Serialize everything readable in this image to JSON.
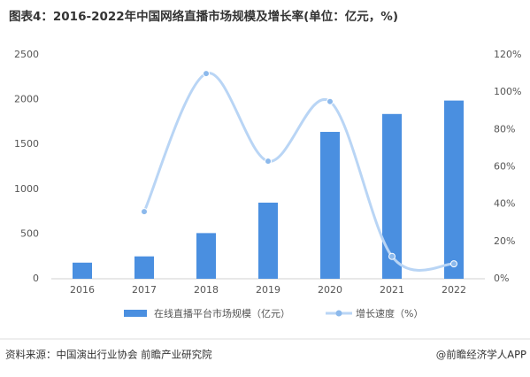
{
  "chart_data": {
    "type": "bar-line",
    "title": "图表4：2016-2022年中国网络直播市场规模及增长率(单位：亿元，%)",
    "categories": [
      "2016",
      "2017",
      "2018",
      "2019",
      "2020",
      "2021",
      "2022"
    ],
    "series": [
      {
        "name": "在线直播平台市场规模（亿元）",
        "type": "bar",
        "color": "#4a8fe0",
        "values": [
          180,
          250,
          510,
          850,
          1640,
          1840,
          1990
        ]
      },
      {
        "name": "增长速度（%）",
        "type": "line",
        "axis": "y2",
        "smooth": true,
        "color": "#b9d5f5",
        "values": [
          null,
          36,
          110,
          63,
          95,
          12,
          8
        ]
      }
    ],
    "ylim": [
      0,
      2500
    ],
    "yticks": [
      0,
      500,
      1000,
      1500,
      2000,
      2500
    ],
    "y2lim": [
      0,
      120
    ],
    "y2ticks": [
      {
        "value": 0,
        "label": "0%"
      },
      {
        "value": 20,
        "label": "20%"
      },
      {
        "value": 40,
        "label": "40%"
      },
      {
        "value": 60,
        "label": "60%"
      },
      {
        "value": 80,
        "label": "80%"
      },
      {
        "value": 100,
        "label": "100%"
      },
      {
        "value": 120,
        "label": "120%"
      }
    ],
    "source": "资料来源：中国演出行业协会 前瞻产业研究院",
    "credit": "@前瞻经济学人APP"
  }
}
